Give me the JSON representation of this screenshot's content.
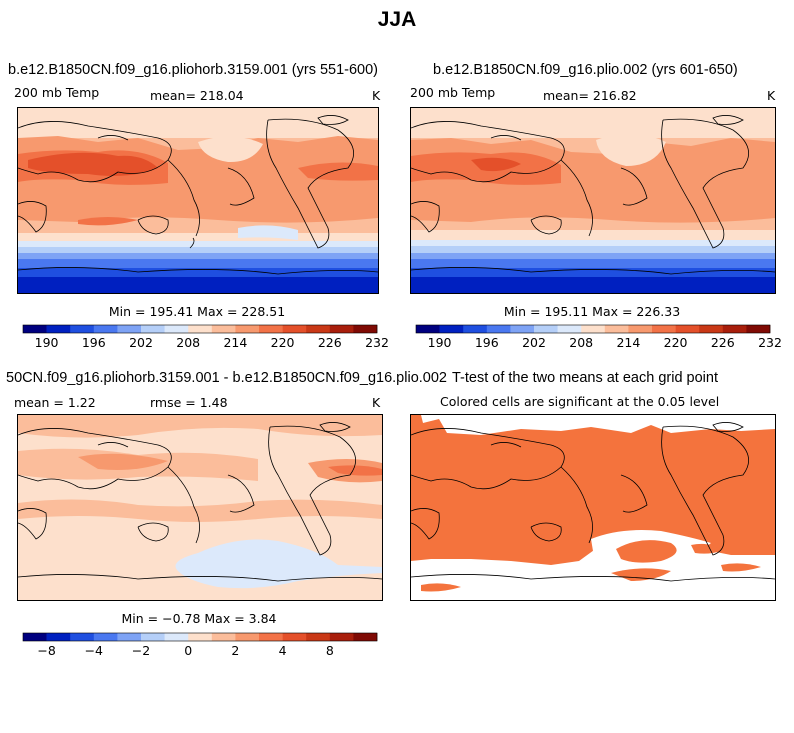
{
  "title": "JJA",
  "units": "K",
  "panels": [
    {
      "title": "b.e12.B1850CN.f09_g16.pliohorb.3159.001 (yrs 551-600)",
      "variable": "200 mb Temp",
      "mean_text": "mean= 218.04",
      "units": "K",
      "minmax": "Min = 195.41 Max = 228.51"
    },
    {
      "title": "b.e12.B1850CN.f09_g16.plio.002 (yrs 601-650)",
      "variable": "200 mb Temp",
      "mean_text": "mean= 216.82",
      "units": "K",
      "minmax": "Min = 195.11 Max = 226.33"
    },
    {
      "title": "50CN.f09_g16.pliohorb.3159.001 - b.e12.B1850CN.f09_g16.plio.002",
      "mean_text": "mean =    1.22",
      "rmse_text": "rmse =    1.48",
      "units": "K",
      "minmax": "Min =  −0.78 Max =    3.84"
    },
    {
      "title": "T-test of the two means at each grid point",
      "subtitle": "Colored cells are significant at the 0.05 level"
    }
  ],
  "colorbar_colors": [
    "#00007f",
    "#0020c0",
    "#1f4fe0",
    "#4a78f0",
    "#7ea3f5",
    "#b5cff8",
    "#dce9fb",
    "#fde0cc",
    "#fbbd9b",
    "#f7996e",
    "#f27247",
    "#e4502a",
    "#c93816",
    "#a81e0b",
    "#7f0a04"
  ],
  "colorbar_abs_labels": [
    "190",
    "196",
    "202",
    "208",
    "214",
    "220",
    "226",
    "232"
  ],
  "colorbar_diff_labels": [
    "−8",
    "−4",
    "−2",
    "0",
    "2",
    "4",
    "8"
  ],
  "significance_color": "#f4733d"
}
